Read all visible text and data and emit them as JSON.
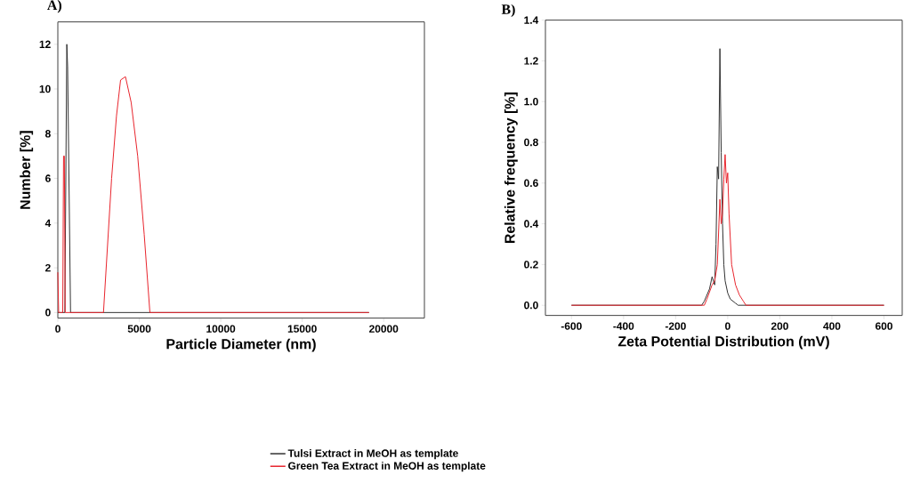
{
  "chart_data": [
    {
      "type": "line",
      "annotations": [
        {
          "text": "A)"
        }
      ],
      "xlabel": "Particle Diameter (nm)",
      "ylabel": "Number [%]",
      "xlim": [
        0,
        22500
      ],
      "ylim": [
        -0.25,
        13
      ],
      "xticks": [
        0,
        5000,
        10000,
        15000,
        20000
      ],
      "yticks": [
        0,
        2,
        4,
        6,
        8,
        10,
        12
      ],
      "legend": "bottom",
      "grid": false,
      "marker": "none",
      "line_style": "solid",
      "series": [
        {
          "name": "Tulsi Extract in MeOH as template",
          "color": "#303030",
          "x": [
            0,
            430,
            550,
            600,
            780,
            19100
          ],
          "values": [
            0,
            0,
            12,
            11,
            0,
            0
          ]
        },
        {
          "name": "Green Tea Extract in MeOH as template",
          "color": "#e8242c",
          "x": [
            0,
            50,
            300,
            350,
            400,
            450,
            2800,
            3300,
            3600,
            3850,
            4150,
            4500,
            4900,
            5300,
            5650,
            19100
          ],
          "values": [
            1.8,
            0,
            0,
            7,
            7,
            0,
            0,
            6,
            8.8,
            10.4,
            10.55,
            9.4,
            7,
            3.5,
            0,
            0
          ]
        }
      ]
    },
    {
      "type": "line",
      "annotations": [
        {
          "text": "B)"
        }
      ],
      "xlabel": "Zeta Potential Distribution (mV)",
      "ylabel": "Relative frequency [%]",
      "xlim": [
        -700,
        670
      ],
      "ylim": [
        -0.05,
        1.4
      ],
      "xticks": [
        -600,
        -400,
        -200,
        0,
        200,
        400,
        600
      ],
      "yticks": [
        {
          "value": 0,
          "label": "0.0"
        },
        0.2,
        0.4,
        0.6,
        0.8,
        {
          "value": 1,
          "label": "1.0"
        },
        1.2,
        1.4
      ],
      "grid": false,
      "marker": "none",
      "line_style": "solid",
      "series": [
        {
          "color": "#303030",
          "x": [
            -600,
            -100,
            -90,
            -70,
            -60,
            -50,
            -45,
            -40,
            -35,
            -30,
            -25,
            -20,
            -15,
            -10,
            0,
            10,
            20,
            30,
            40,
            600
          ],
          "values": [
            0,
            0,
            0.02,
            0.08,
            0.14,
            0.1,
            0.3,
            0.68,
            0.62,
            1.26,
            0.75,
            0.4,
            0.2,
            0.12,
            0.06,
            0.03,
            0.02,
            0.01,
            0,
            0
          ]
        },
        {
          "color": "#e8242c",
          "x": [
            -600,
            -90,
            -80,
            -60,
            -50,
            -40,
            -30,
            -25,
            -20,
            -15,
            -10,
            -5,
            0,
            5,
            15,
            30,
            45,
            60,
            70,
            600
          ],
          "values": [
            0,
            0,
            0.03,
            0.1,
            0.12,
            0.2,
            0.52,
            0.4,
            0.45,
            0.62,
            0.74,
            0.6,
            0.65,
            0.45,
            0.2,
            0.1,
            0.05,
            0.02,
            0,
            0
          ]
        }
      ]
    }
  ]
}
